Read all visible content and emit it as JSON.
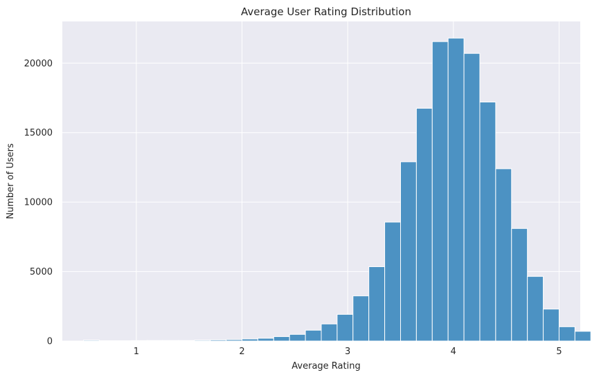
{
  "chart_data": {
    "type": "bar",
    "title": "Average User Rating Distribution",
    "xlabel": "Average Rating",
    "ylabel": "Number of Users",
    "xlim": [
      0.3,
      5.2
    ],
    "ylim": [
      0,
      23000
    ],
    "xticks": [
      1,
      2,
      3,
      4,
      5
    ],
    "yticks": [
      0,
      5000,
      10000,
      15000,
      20000
    ],
    "grid": true,
    "bin_start": 0.5,
    "bin_width": 0.15,
    "values": [
      60,
      20,
      20,
      30,
      40,
      40,
      40,
      60,
      80,
      100,
      150,
      200,
      320,
      480,
      780,
      1230,
      1920,
      3250,
      5350,
      8560,
      12900,
      16750,
      21550,
      21800,
      20700,
      17200,
      12400,
      8100,
      4650,
      2300,
      1030,
      700
    ],
    "colors": {
      "bar": "#4c92c3",
      "bar_edge": "#ffffff",
      "plot_background": "#eaeaf2",
      "grid": "#ffffff"
    }
  }
}
